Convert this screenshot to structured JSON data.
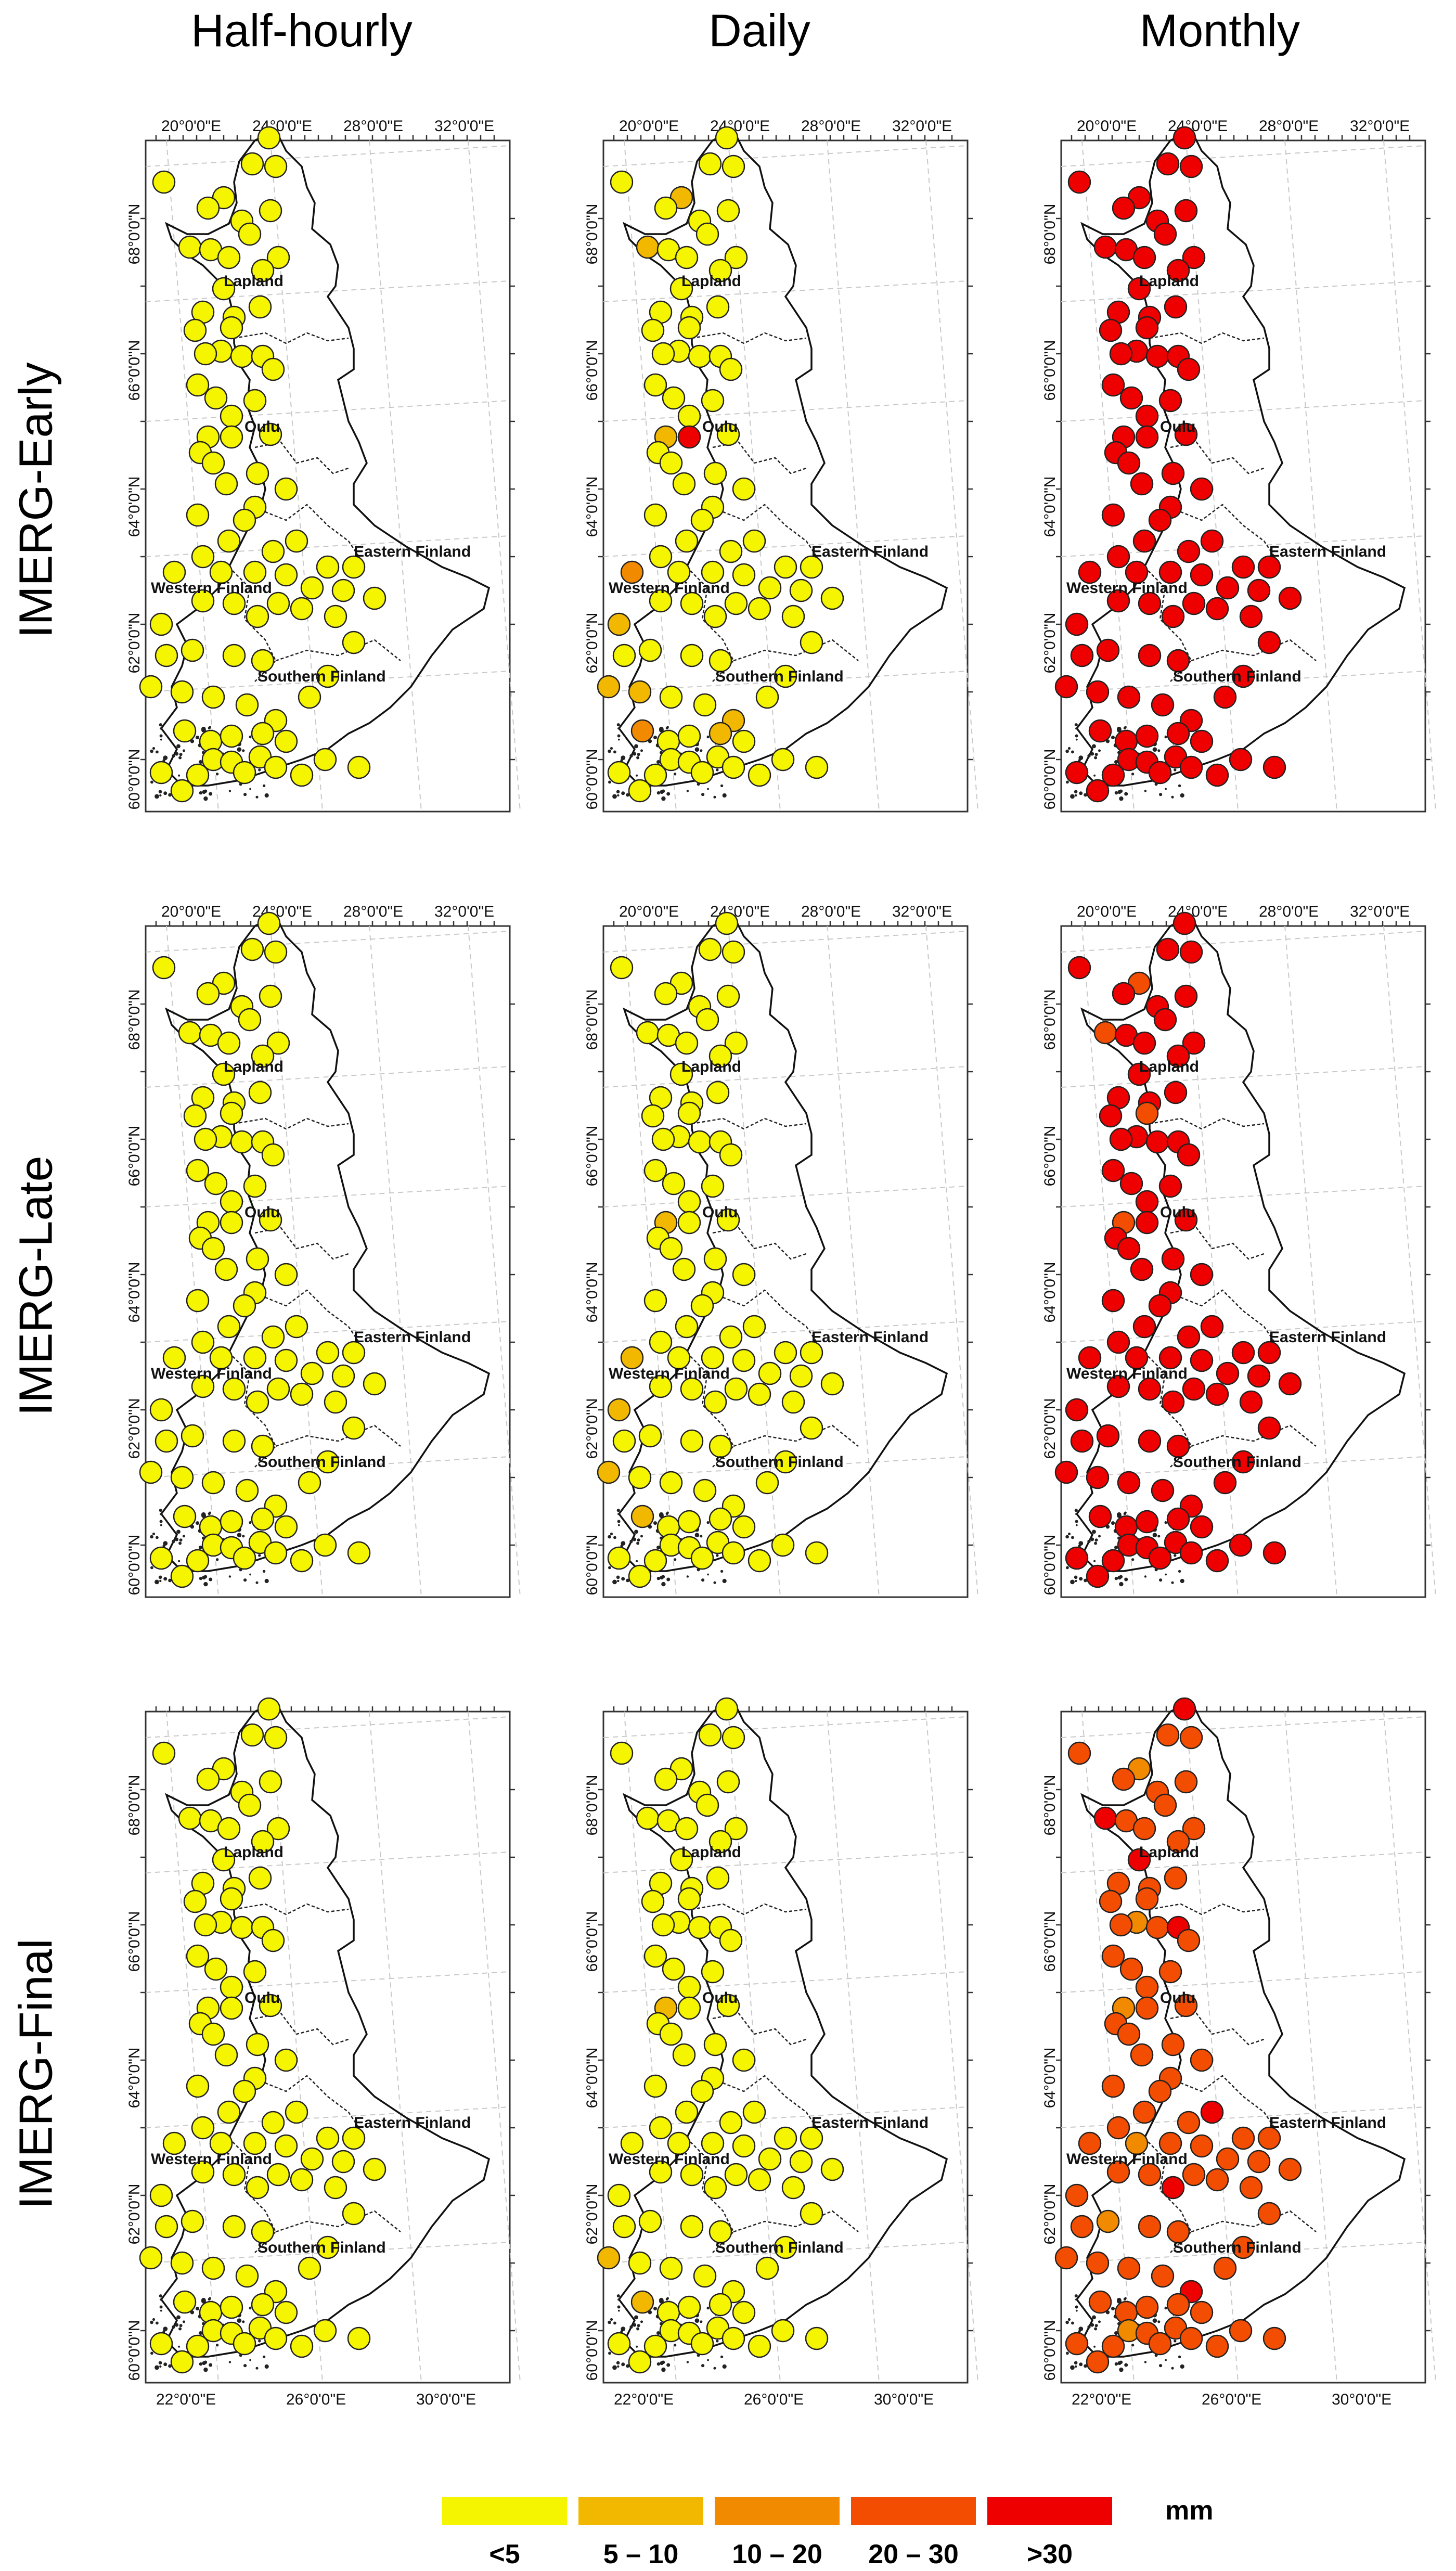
{
  "columns": [
    "Half-hourly",
    "Daily",
    "Monthly"
  ],
  "rows": [
    "IMERG-Early",
    "IMERG-Late",
    "IMERG-Final"
  ],
  "axes": {
    "lon_top": [
      "20°0'0\"E",
      "24°0'0\"E",
      "28°0'0\"E",
      "32°0'0\"E"
    ],
    "lon_bottom": [
      "22°0'0\"E",
      "26°0'0\"E",
      "30°0'0\"E"
    ],
    "lat_left": [
      "68°0'0\"N",
      "66°0'0\"N",
      "64°0'0\"N",
      "62°0'0\"N",
      "60°0'0\"N"
    ]
  },
  "regions": [
    "Lapland",
    "Oulu",
    "Eastern Finland",
    "Western Finland",
    "Southern Finland"
  ],
  "legend": {
    "unit": "mm",
    "classes": [
      {
        "label": "<5",
        "color": "#f5f500"
      },
      {
        "label": "5 – 10",
        "color": "#f2b800"
      },
      {
        "label": "10 – 20",
        "color": "#f28a00"
      },
      {
        "label": "20 – 30",
        "color": "#f24d00"
      },
      {
        "label": ">30",
        "color": "#ee0000"
      }
    ]
  },
  "panel_classes": {
    "IMERG-Early": {
      "Half-hourly": {
        "default": 0,
        "overrides": {}
      },
      "Daily": {
        "default": 0,
        "overrides": {
          "4": 1,
          "9": 1,
          "30": 1,
          "31": 4,
          "44": 2,
          "60": 1,
          "66": 1,
          "67": 1,
          "70": 1,
          "72": 2,
          "75": 1
        }
      },
      "Monthly": {
        "default": 4,
        "overrides": {}
      }
    },
    "IMERG-Late": {
      "Half-hourly": {
        "default": 0,
        "overrides": {}
      },
      "Daily": {
        "default": 0,
        "overrides": {
          "30": 1,
          "44": 1,
          "60": 1,
          "66": 1,
          "72": 1
        }
      },
      "Monthly": {
        "default": 4,
        "overrides": {
          "4": 3,
          "9": 3,
          "18": 3,
          "30": 3
        }
      }
    },
    "IMERG-Final": {
      "Half-hourly": {
        "default": 0,
        "overrides": {}
      },
      "Daily": {
        "default": 0,
        "overrides": {
          "30": 1,
          "66": 1,
          "72": 1
        }
      },
      "Monthly": {
        "default": 3,
        "overrides": {
          "0": 4,
          "4": 2,
          "9": 4,
          "14": 4,
          "20": 2,
          "23": 4,
          "30": 2,
          "40": 4,
          "45": 2,
          "55": 4,
          "62": 2,
          "70": 4,
          "77": 2
        }
      }
    }
  }
}
